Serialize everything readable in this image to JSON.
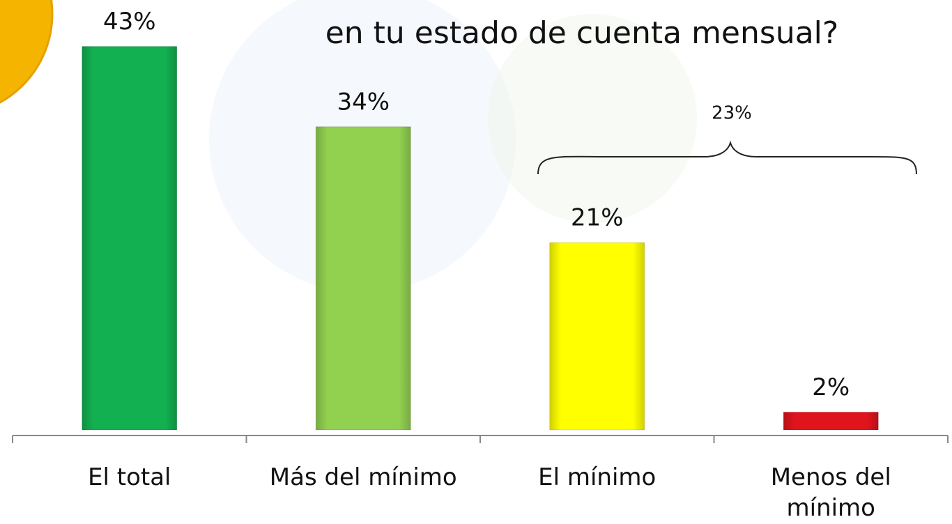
{
  "chart_data": {
    "type": "bar",
    "title": "en tu estado de cuenta mensual?",
    "categories": [
      "El total",
      "Más del mínimo",
      "El mínimo",
      "Menos del mínimo"
    ],
    "values": [
      43,
      34,
      21,
      2
    ],
    "value_labels": [
      "43%",
      "34%",
      "21%",
      "2%"
    ],
    "colors": [
      "#12b050",
      "#92d050",
      "#ffff00",
      "#e0141c"
    ],
    "ylim": [
      0,
      45
    ],
    "annotations": [
      {
        "text": "23%"
      }
    ]
  }
}
